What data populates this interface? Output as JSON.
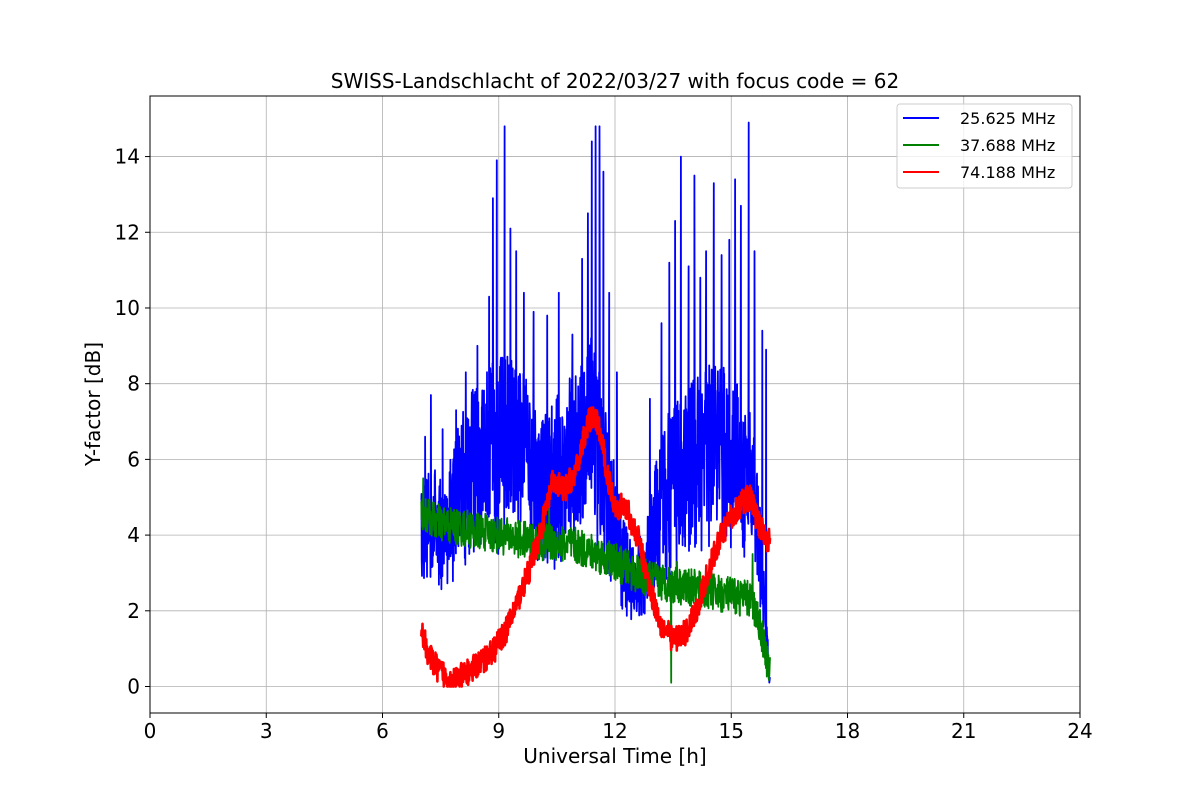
{
  "chart_data": {
    "type": "line",
    "title": "SWISS-Landschlacht of 2022/03/27 with focus code = 62",
    "xlabel": "Universal Time [h]",
    "ylabel": "Y-factor [dB]",
    "xlim": [
      0,
      24
    ],
    "ylim": [
      -0.7,
      15.6
    ],
    "xticks": [
      0,
      3,
      6,
      9,
      12,
      15,
      18,
      21,
      24
    ],
    "yticks": [
      0,
      2,
      4,
      6,
      8,
      10,
      12,
      14
    ],
    "grid": true,
    "legend_position": "top-right",
    "series": [
      {
        "name": "25.625 MHz",
        "color": "#0000ff",
        "x": [
          7.0,
          7.3,
          7.6,
          7.9,
          8.2,
          8.5,
          8.8,
          9.1,
          9.4,
          9.7,
          10.0,
          10.3,
          10.6,
          10.9,
          11.2,
          11.4,
          11.6,
          11.9,
          12.2,
          12.5,
          12.8,
          13.1,
          13.4,
          13.7,
          14.0,
          14.3,
          14.6,
          14.9,
          15.2,
          15.5,
          15.7,
          15.85,
          16.0
        ],
        "mean": [
          4.0,
          4.3,
          3.8,
          4.8,
          5.5,
          5.8,
          5.9,
          6.2,
          6.3,
          6.0,
          5.2,
          5.3,
          5.4,
          5.6,
          6.0,
          6.4,
          5.8,
          4.5,
          3.2,
          2.6,
          3.2,
          4.2,
          5.0,
          5.5,
          5.8,
          6.0,
          6.0,
          6.0,
          5.6,
          5.2,
          4.2,
          2.0,
          0.0
        ],
        "spread": [
          1.2,
          1.6,
          1.4,
          2.0,
          2.2,
          2.3,
          2.6,
          2.6,
          2.5,
          2.2,
          2.0,
          2.2,
          2.4,
          2.6,
          2.6,
          2.8,
          2.4,
          1.8,
          1.3,
          1.0,
          1.3,
          2.0,
          2.2,
          2.3,
          2.4,
          2.4,
          2.4,
          2.4,
          2.3,
          2.0,
          1.6,
          1.0,
          0.3
        ],
        "peaks": [
          [
            7.1,
            6.6
          ],
          [
            7.25,
            7.7
          ],
          [
            7.55,
            6.8
          ],
          [
            7.9,
            7.3
          ],
          [
            8.15,
            8.3
          ],
          [
            8.45,
            9.0
          ],
          [
            8.75,
            10.3
          ],
          [
            8.85,
            12.9
          ],
          [
            8.95,
            13.9
          ],
          [
            9.15,
            14.8
          ],
          [
            9.3,
            12.1
          ],
          [
            9.45,
            11.5
          ],
          [
            9.65,
            10.4
          ],
          [
            9.9,
            9.9
          ],
          [
            10.25,
            9.8
          ],
          [
            10.55,
            10.4
          ],
          [
            10.9,
            9.3
          ],
          [
            11.15,
            11.3
          ],
          [
            11.3,
            12.5
          ],
          [
            11.4,
            14.4
          ],
          [
            11.5,
            14.8
          ],
          [
            11.6,
            14.8
          ],
          [
            11.7,
            13.6
          ],
          [
            11.85,
            10.4
          ],
          [
            12.05,
            8.3
          ],
          [
            12.9,
            7.6
          ],
          [
            13.2,
            9.6
          ],
          [
            13.4,
            11.2
          ],
          [
            13.55,
            12.3
          ],
          [
            13.7,
            14.0
          ],
          [
            13.9,
            11.1
          ],
          [
            14.05,
            13.5
          ],
          [
            14.2,
            10.8
          ],
          [
            14.35,
            11.5
          ],
          [
            14.55,
            13.3
          ],
          [
            14.75,
            11.4
          ],
          [
            14.95,
            11.8
          ],
          [
            15.1,
            13.4
          ],
          [
            15.25,
            12.7
          ],
          [
            15.45,
            14.9
          ],
          [
            15.6,
            11.5
          ],
          [
            15.8,
            9.4
          ],
          [
            15.9,
            8.9
          ]
        ]
      },
      {
        "name": "37.688 MHz",
        "color": "#008000",
        "x": [
          7.0,
          7.5,
          8.0,
          8.5,
          9.0,
          9.5,
          10.0,
          10.5,
          11.0,
          11.5,
          12.0,
          12.5,
          13.0,
          13.5,
          14.0,
          14.5,
          15.0,
          15.5,
          15.7,
          15.85,
          16.0
        ],
        "y": [
          4.6,
          4.3,
          4.2,
          4.1,
          4.0,
          3.9,
          3.8,
          3.8,
          3.7,
          3.5,
          3.3,
          3.0,
          2.8,
          2.7,
          2.6,
          2.5,
          2.4,
          2.3,
          1.8,
          1.1,
          0.3
        ],
        "spread": 0.5,
        "spikes": [
          [
            7.05,
            5.5
          ],
          [
            13.45,
            0.1
          ],
          [
            10.3,
            5.0
          ],
          [
            15.55,
            3.5
          ],
          [
            13.6,
            3.3
          ]
        ]
      },
      {
        "name": "74.188 MHz",
        "color": "#ff0000",
        "x": [
          7.0,
          7.2,
          7.4,
          7.6,
          7.8,
          8.0,
          8.3,
          8.6,
          8.9,
          9.2,
          9.5,
          9.8,
          10.1,
          10.4,
          10.7,
          11.0,
          11.2,
          11.4,
          11.6,
          11.8,
          12.0,
          12.3,
          12.6,
          12.9,
          13.2,
          13.5,
          13.8,
          14.1,
          14.4,
          14.7,
          15.0,
          15.3,
          15.5,
          15.7,
          16.0
        ],
        "y": [
          1.5,
          0.8,
          0.5,
          0.3,
          0.15,
          0.25,
          0.45,
          0.7,
          1.0,
          1.5,
          2.3,
          3.1,
          4.2,
          5.4,
          5.2,
          5.7,
          6.6,
          7.2,
          6.8,
          5.6,
          4.8,
          4.7,
          3.9,
          2.6,
          1.6,
          1.25,
          1.4,
          2.0,
          3.0,
          3.9,
          4.5,
          4.9,
          5.0,
          4.3,
          3.8
        ],
        "spread": 0.35
      }
    ]
  }
}
